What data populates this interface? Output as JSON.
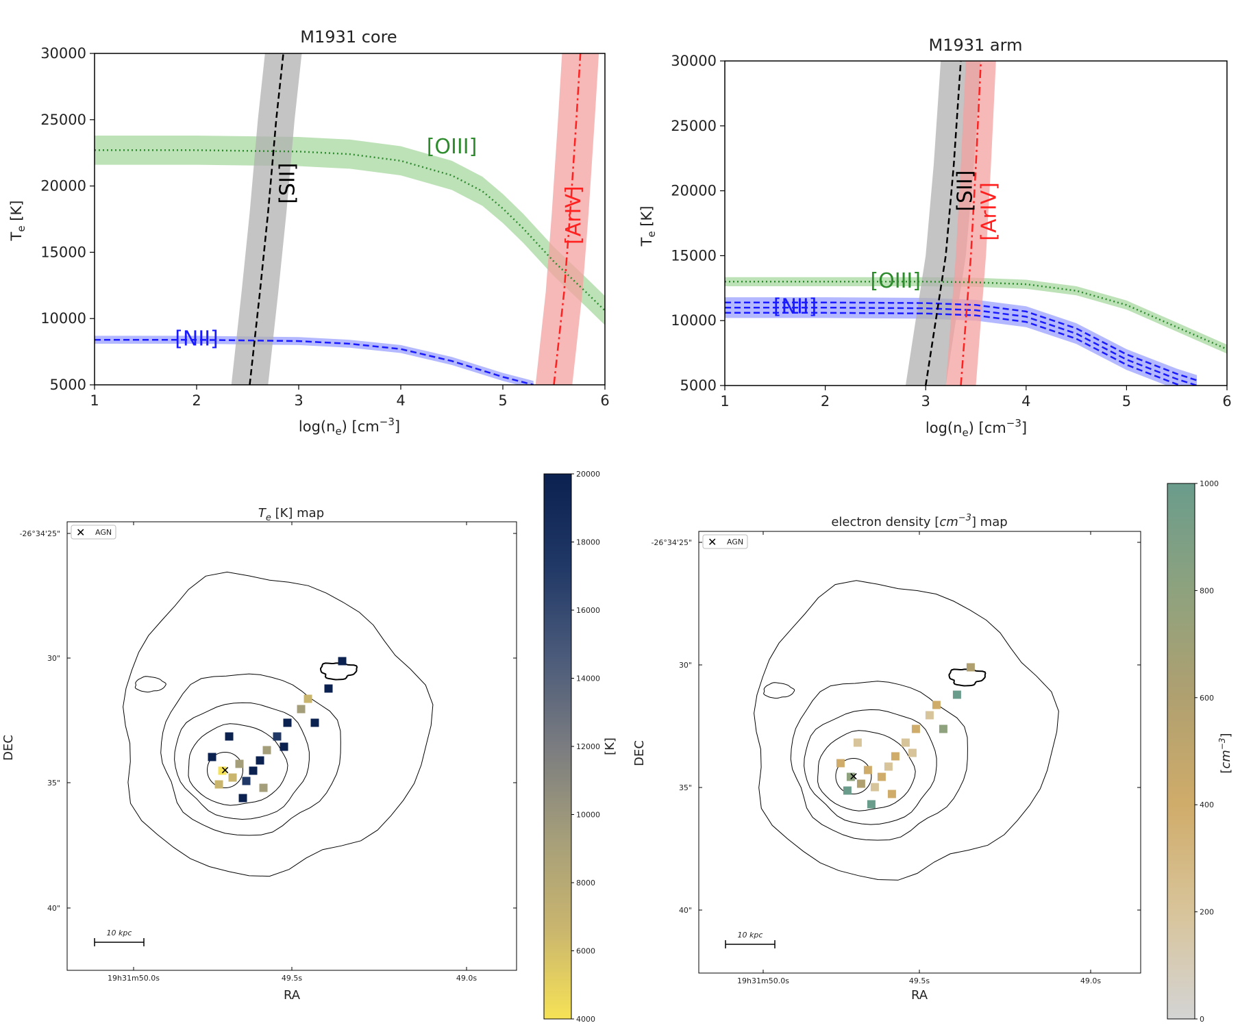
{
  "chart_data": [
    {
      "type": "line",
      "title": "M1931 core",
      "xlabel": "log(n_e) [cm^-3]",
      "ylabel": "T_e [K]",
      "xlim": [
        1,
        6
      ],
      "ylim": [
        5000,
        30000
      ],
      "xticks": [
        "1",
        "2",
        "3",
        "4",
        "5",
        "6"
      ],
      "yticks": [
        "5000",
        "10000",
        "15000",
        "20000",
        "25000",
        "30000"
      ],
      "series": [
        {
          "name": "[OIII]",
          "color": "#2e8b2e",
          "band": "#a8d8a0",
          "style": "dotted",
          "x": [
            1,
            2,
            3,
            3.5,
            4,
            4.5,
            4.8,
            5,
            5.2,
            5.5,
            5.8,
            6
          ],
          "y": [
            22700,
            22700,
            22600,
            22400,
            21900,
            20800,
            19600,
            18300,
            16800,
            14300,
            12100,
            10600
          ],
          "halfwidth": 1100
        },
        {
          "name": "[NII]",
          "color": "#1a1aff",
          "band": "#9aa0ff",
          "style": "dashed",
          "x": [
            1,
            2,
            3,
            3.5,
            4,
            4.5,
            5,
            5.3
          ],
          "y": [
            8400,
            8400,
            8300,
            8100,
            7700,
            6800,
            5600,
            5000
          ],
          "halfwidth": 300
        },
        {
          "name": "[SII]",
          "color": "#000000",
          "band": "#b0b0b0",
          "style": "dashed",
          "x": [
            2.52,
            2.62,
            2.7,
            2.78,
            2.85
          ],
          "y": [
            5000,
            12000,
            18000,
            25000,
            30000
          ],
          "halfwidth_x": 0.18
        },
        {
          "name": "[ArIV]",
          "color": "#ff2020",
          "band": "#f4a0a0",
          "style": "dashdot",
          "x": [
            5.5,
            5.6,
            5.66,
            5.72,
            5.76
          ],
          "y": [
            5000,
            12000,
            18000,
            25000,
            30000
          ],
          "halfwidth_x": 0.18
        }
      ]
    },
    {
      "type": "line",
      "title": "M1931 arm",
      "xlabel": "log(n_e) [cm^-3]",
      "ylabel": "T_e [K]",
      "xlim": [
        1,
        6
      ],
      "ylim": [
        5000,
        30000
      ],
      "xticks": [
        "1",
        "2",
        "3",
        "4",
        "5",
        "6"
      ],
      "yticks": [
        "5000",
        "10000",
        "15000",
        "20000",
        "25000",
        "30000"
      ],
      "series": [
        {
          "name": "[OIII]",
          "color": "#2e8b2e",
          "band": "#a8d8a0",
          "style": "dotted",
          "x": [
            1,
            2,
            3,
            3.5,
            4,
            4.5,
            5,
            5.5,
            6
          ],
          "y": [
            13000,
            13000,
            13000,
            12950,
            12800,
            12300,
            11200,
            9500,
            7800
          ],
          "halfwidth": 350
        },
        {
          "name": "[NII]",
          "color": "#1a1aff",
          "band": "#9aa0ff",
          "style": "dashed",
          "x": [
            1,
            2,
            3,
            3.5,
            4,
            4.5,
            5,
            5.5,
            5.7
          ],
          "y": [
            11000,
            11000,
            10950,
            10800,
            10300,
            9000,
            7000,
            5500,
            5000
          ],
          "halfwidth": 800,
          "offsets": [
            -400,
            0,
            400
          ]
        },
        {
          "name": "[SII]",
          "color": "#000000",
          "band": "#b0b0b0",
          "style": "dashed",
          "x": [
            3.0,
            3.1,
            3.2,
            3.28,
            3.35
          ],
          "y": [
            5000,
            10000,
            15000,
            22000,
            30000
          ],
          "halfwidth_x": 0.2
        },
        {
          "name": "[ArIV]",
          "color": "#ff2020",
          "band": "#f4a0a0",
          "style": "dashdot",
          "x": [
            3.35,
            3.4,
            3.45,
            3.5,
            3.55
          ],
          "y": [
            5000,
            10000,
            15000,
            22000,
            30000
          ],
          "halfwidth_x": 0.15
        }
      ]
    },
    {
      "type": "heatmap",
      "title": "T_e [K] map",
      "xlabel": "RA",
      "ylabel": "DEC",
      "xticks": [
        "19h31m50.0s",
        "49.5s",
        "49.0s"
      ],
      "yticks": [
        "-26°34'25\"",
        "30\"",
        "35\"",
        "40\""
      ],
      "legend": "AGN",
      "scalebar": "10 kpc",
      "colorbar": {
        "label": "[K]",
        "min": 4000,
        "max": 20000,
        "ticks": [
          "4000",
          "6000",
          "8000",
          "10000",
          "12000",
          "14000",
          "16000",
          "18000",
          "20000"
        ],
        "colors": [
          "#f6e256",
          "#c9b56e",
          "#a59e7a",
          "#7a7c80",
          "#4a5a7a",
          "#203866",
          "#0b2150"
        ]
      }
    },
    {
      "type": "heatmap",
      "title": "electron density [cm^-3] map",
      "xlabel": "RA",
      "ylabel": "DEC",
      "xticks": [
        "19h31m50.0s",
        "49.5s",
        "49.0s"
      ],
      "yticks": [
        "-26°34'25\"",
        "30\"",
        "35\"",
        "40\""
      ],
      "legend": "AGN",
      "scalebar": "10 kpc",
      "colorbar": {
        "label": "[cm^-3]",
        "min": 0,
        "max": 1000,
        "ticks": [
          "0",
          "200",
          "400",
          "600",
          "800",
          "1000"
        ],
        "colors": [
          "#d4d4d4",
          "#d8c49a",
          "#d0ac6a",
          "#b0a070",
          "#8ea27e",
          "#6a9c8c"
        ]
      }
    }
  ]
}
